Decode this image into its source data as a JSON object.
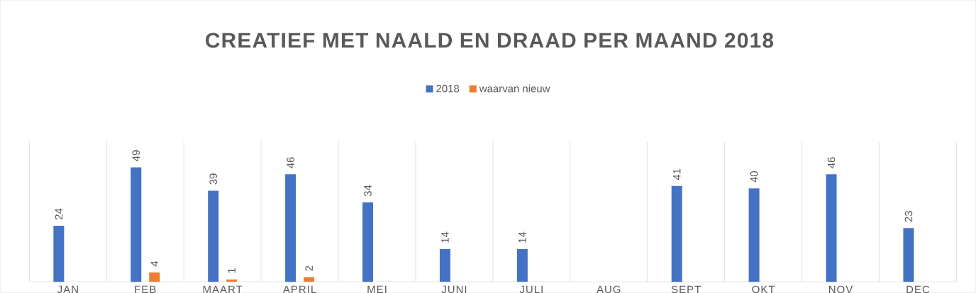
{
  "chart_data": {
    "type": "bar",
    "title": "CREATIEF MET NAALD EN DRAAD PER MAAND 2018",
    "categories": [
      "JAN",
      "FEB",
      "MAART",
      "APRIL",
      "MEI",
      "JUNI",
      "JULI",
      "AUG",
      "SEPT",
      "OKT",
      "NOV",
      "DEC"
    ],
    "series": [
      {
        "name": "2018",
        "color": "#4472c4",
        "values": [
          24,
          49,
          39,
          46,
          34,
          14,
          14,
          null,
          41,
          40,
          46,
          23
        ]
      },
      {
        "name": "waarvan nieuw",
        "color": "#ed7d31",
        "values": [
          null,
          4,
          1,
          2,
          null,
          null,
          null,
          null,
          null,
          null,
          null,
          null
        ]
      }
    ],
    "ylim": [
      0,
      60
    ],
    "tick_labels": "x",
    "grid": "x",
    "legend": "top",
    "data_labels": true
  }
}
